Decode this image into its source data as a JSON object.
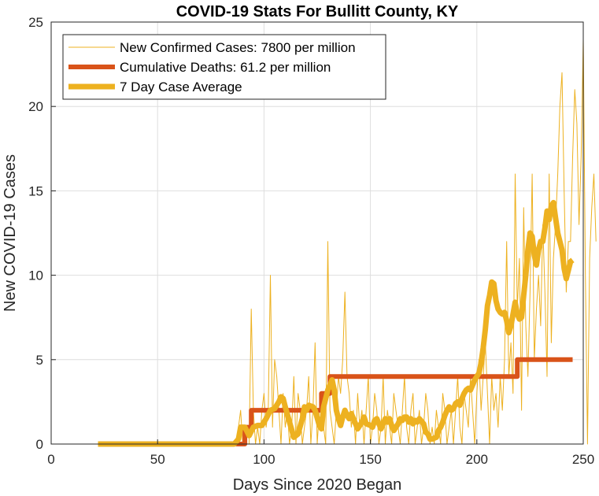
{
  "chart_data": {
    "type": "line",
    "title": "COVID-19 Stats For Bullitt County, KY",
    "xlabel": "Days Since 2020 Began",
    "ylabel": "New COVID-19 Cases",
    "xlim": [
      0,
      250
    ],
    "ylim": [
      0,
      25
    ],
    "xticks": [
      0,
      50,
      100,
      150,
      200,
      250
    ],
    "yticks": [
      0,
      5,
      10,
      15,
      20,
      25
    ],
    "grid": true,
    "legend_position": "top-left",
    "series": [
      {
        "name": "New Confirmed Cases: 7800 per million",
        "color": "#EDB120",
        "style": "thin",
        "x_start": 22,
        "values": [
          0,
          0,
          0,
          0,
          0,
          0,
          0,
          0,
          0,
          0,
          0,
          0,
          0,
          0,
          0,
          0,
          0,
          0,
          0,
          0,
          0,
          0,
          0,
          0,
          0,
          0,
          0,
          0,
          0,
          0,
          0,
          0,
          0,
          0,
          0,
          0,
          0,
          0,
          0,
          0,
          0,
          0,
          0,
          0,
          0,
          0,
          0,
          0,
          0,
          0,
          0,
          0,
          0,
          0,
          0,
          0,
          0,
          0,
          0,
          0,
          0,
          0,
          0,
          0,
          0,
          0,
          1,
          2,
          0,
          1,
          0,
          0,
          8,
          2,
          0,
          1,
          0,
          2,
          3,
          1,
          2,
          10,
          1,
          5,
          4,
          2,
          0,
          3,
          1,
          2,
          0,
          1,
          4,
          0,
          3,
          2,
          0,
          1,
          2,
          4,
          0,
          2,
          6,
          0,
          2,
          3,
          1,
          0,
          12,
          2,
          1,
          0,
          2,
          4,
          3,
          5,
          9,
          4,
          3,
          1,
          2,
          0,
          3,
          1,
          2,
          0,
          2,
          4,
          0,
          1,
          3,
          2,
          0,
          1,
          4,
          0,
          2,
          1,
          0,
          3,
          2,
          1,
          0,
          2,
          4,
          1,
          0,
          2,
          3,
          0,
          1,
          2,
          0,
          1,
          3,
          2,
          0,
          1,
          0,
          2,
          1,
          0,
          3,
          2,
          0,
          1,
          2,
          0,
          2,
          4,
          1,
          0,
          3,
          2,
          1,
          4,
          2,
          0,
          3,
          5,
          2,
          4,
          6,
          3,
          0,
          4,
          2,
          3,
          1,
          4,
          2,
          5,
          12,
          4,
          6,
          3,
          16,
          8,
          11,
          2,
          14,
          7,
          4,
          9,
          16,
          5,
          8,
          10,
          7,
          13,
          9,
          4,
          16,
          6,
          11,
          13,
          16,
          20,
          22,
          15,
          9,
          12,
          12,
          17,
          21,
          19,
          13,
          17,
          24,
          10,
          0,
          11,
          14,
          16,
          12
        ]
      },
      {
        "name": "Cumulative Deaths: 61.2 per million",
        "color": "#D95319",
        "style": "step",
        "points": [
          [
            22,
            0
          ],
          [
            87,
            0
          ],
          [
            88,
            0
          ],
          [
            91,
            0
          ],
          [
            91,
            1
          ],
          [
            94,
            1
          ],
          [
            94,
            2
          ],
          [
            127,
            2
          ],
          [
            127,
            3
          ],
          [
            131,
            3
          ],
          [
            131,
            4
          ],
          [
            219,
            4
          ],
          [
            219,
            5
          ],
          [
            245,
            5
          ]
        ]
      },
      {
        "name": "7 Day Case Average",
        "color": "#EDB120",
        "style": "thick",
        "points": [
          [
            22,
            0
          ],
          [
            86,
            0
          ],
          [
            88,
            0.3
          ],
          [
            89,
            1
          ],
          [
            91,
            1
          ],
          [
            93,
            0.5
          ],
          [
            95,
            1
          ],
          [
            97,
            1.1
          ],
          [
            99,
            1.1
          ],
          [
            101,
            1.5
          ],
          [
            103,
            2
          ],
          [
            105,
            2.1
          ],
          [
            107,
            2.5
          ],
          [
            108,
            2.8
          ],
          [
            109,
            2.7
          ],
          [
            110,
            2.2
          ],
          [
            112,
            1.3
          ],
          [
            114,
            0.4
          ],
          [
            116,
            0.6
          ],
          [
            118,
            1.5
          ],
          [
            119,
            2.2
          ],
          [
            120,
            2
          ],
          [
            121,
            2.3
          ],
          [
            123,
            2.2
          ],
          [
            124,
            2
          ],
          [
            126,
            1.1
          ],
          [
            127,
            0.9
          ],
          [
            128,
            2.2
          ],
          [
            130,
            3.2
          ],
          [
            132,
            3.8
          ],
          [
            133,
            3.2
          ],
          [
            134,
            2
          ],
          [
            135,
            1.5
          ],
          [
            136,
            1.1
          ],
          [
            137,
            1.6
          ],
          [
            138,
            2
          ],
          [
            139,
            1.7
          ],
          [
            140,
            1.5
          ],
          [
            141,
            1.8
          ],
          [
            143,
            1.2
          ],
          [
            144,
            0.9
          ],
          [
            146,
            1.3
          ],
          [
            147,
            1.6
          ],
          [
            148,
            1.2
          ],
          [
            150,
            1.1
          ],
          [
            151,
            1
          ],
          [
            152,
            1.4
          ],
          [
            153,
            1.5
          ],
          [
            154,
            1.2
          ],
          [
            155,
            0.9
          ],
          [
            157,
            1.5
          ],
          [
            158,
            1.3
          ],
          [
            159,
            1.5
          ],
          [
            160,
            1.1
          ],
          [
            161,
            0.8
          ],
          [
            162,
            1
          ],
          [
            163,
            1.2
          ],
          [
            164,
            1.5
          ],
          [
            165,
            1.4
          ],
          [
            166,
            1.6
          ],
          [
            167,
            1.6
          ],
          [
            168,
            1.3
          ],
          [
            169,
            1.5
          ],
          [
            170,
            1.2
          ],
          [
            171,
            1.4
          ],
          [
            172,
            1.3
          ],
          [
            173,
            1.5
          ],
          [
            175,
            1.2
          ],
          [
            176,
            0.7
          ],
          [
            177,
            0.6
          ],
          [
            178,
            0.3
          ],
          [
            179,
            0.3
          ],
          [
            181,
            0.4
          ],
          [
            182,
            0.8
          ],
          [
            183,
            1
          ],
          [
            184,
            1.3
          ],
          [
            185,
            1.7
          ],
          [
            186,
            2
          ],
          [
            187,
            2.2
          ],
          [
            188,
            2
          ],
          [
            189,
            2.1
          ],
          [
            190,
            2.4
          ],
          [
            191,
            2.5
          ],
          [
            192,
            2.3
          ],
          [
            193,
            2.7
          ],
          [
            194,
            3
          ],
          [
            195,
            3.2
          ],
          [
            196,
            3.3
          ],
          [
            197,
            3.2
          ],
          [
            198,
            3.5
          ],
          [
            199,
            3.8
          ],
          [
            200,
            4
          ],
          [
            201,
            4.2
          ],
          [
            202,
            4.8
          ],
          [
            203,
            5.7
          ],
          [
            204,
            6.8
          ],
          [
            205,
            8.2
          ],
          [
            206,
            8.8
          ],
          [
            207,
            9.6
          ],
          [
            208,
            9.5
          ],
          [
            209,
            8.5
          ],
          [
            210,
            8
          ],
          [
            211,
            7.8
          ],
          [
            212,
            7.7
          ],
          [
            213,
            7.8
          ],
          [
            214,
            7.3
          ],
          [
            215,
            6.6
          ],
          [
            216,
            7
          ],
          [
            217,
            7.7
          ],
          [
            218,
            8.4
          ],
          [
            219,
            7.7
          ],
          [
            220,
            7.4
          ],
          [
            221,
            7.5
          ],
          [
            222,
            8.8
          ],
          [
            223,
            10
          ],
          [
            224,
            11.5
          ],
          [
            225,
            12.5
          ],
          [
            226,
            12.3
          ],
          [
            227,
            11.2
          ],
          [
            228,
            10.6
          ],
          [
            229,
            11.5
          ],
          [
            230,
            12
          ],
          [
            231,
            12
          ],
          [
            232,
            12.8
          ],
          [
            233,
            13.8
          ],
          [
            234,
            13.3
          ],
          [
            235,
            14.1
          ],
          [
            236,
            14.3
          ],
          [
            237,
            13.4
          ],
          [
            238,
            12.5
          ],
          [
            239,
            12
          ],
          [
            240,
            11.5
          ],
          [
            241,
            10.4
          ],
          [
            242,
            9.8
          ],
          [
            243,
            10.3
          ],
          [
            244,
            10.8
          ],
          [
            245,
            10.9
          ]
        ]
      }
    ]
  }
}
